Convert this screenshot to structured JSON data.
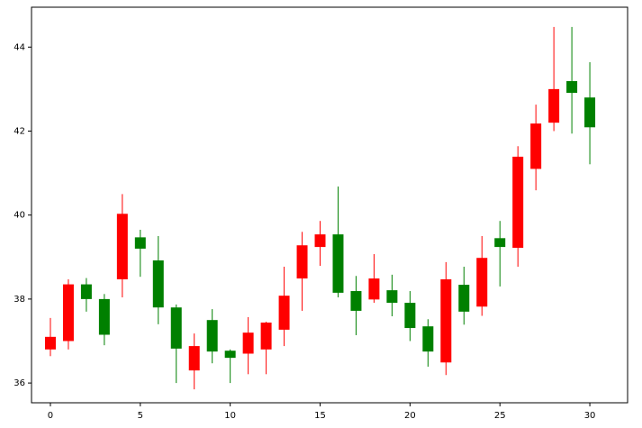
{
  "chart_data": {
    "type": "candlestick",
    "x": [
      0,
      1,
      2,
      3,
      4,
      5,
      6,
      7,
      8,
      9,
      10,
      11,
      12,
      13,
      14,
      15,
      16,
      17,
      18,
      19,
      20,
      21,
      22,
      23,
      24,
      25,
      26,
      27,
      28,
      29,
      30
    ],
    "open": [
      36.8,
      37.0,
      38.35,
      38.0,
      38.47,
      39.47,
      38.92,
      37.8,
      36.3,
      37.5,
      36.77,
      36.7,
      36.8,
      37.27,
      38.49,
      39.24,
      39.54,
      38.19,
      37.99,
      38.21,
      37.91,
      37.35,
      36.49,
      38.34,
      37.82,
      39.45,
      39.22,
      41.1,
      42.2,
      43.19,
      42.8
    ],
    "high": [
      37.55,
      38.47,
      38.5,
      38.12,
      40.5,
      39.65,
      39.5,
      37.87,
      37.18,
      37.76,
      36.8,
      37.57,
      37.46,
      38.77,
      39.6,
      39.86,
      40.68,
      38.55,
      39.07,
      38.58,
      38.19,
      37.52,
      38.88,
      38.77,
      39.5,
      39.86,
      41.64,
      42.63,
      44.48,
      44.48,
      43.64
    ],
    "low": [
      36.64,
      36.8,
      37.7,
      36.9,
      38.04,
      38.53,
      37.4,
      36.0,
      35.85,
      36.47,
      36.0,
      36.21,
      36.21,
      36.88,
      37.72,
      38.79,
      38.04,
      37.14,
      37.91,
      37.59,
      37.0,
      36.39,
      36.19,
      37.39,
      37.6,
      38.3,
      38.77,
      40.59,
      42.0,
      41.94,
      41.21
    ],
    "close": [
      37.1,
      38.35,
      38.0,
      37.15,
      40.03,
      39.2,
      37.8,
      36.82,
      36.88,
      36.75,
      36.6,
      37.2,
      37.44,
      38.08,
      39.28,
      39.54,
      38.15,
      37.72,
      38.49,
      37.91,
      37.31,
      36.75,
      38.47,
      37.7,
      38.98,
      39.24,
      41.39,
      42.18,
      43.0,
      42.91,
      42.09
    ],
    "up_color": "#ff0000",
    "down_color": "#008000",
    "xlim": [
      -1.05,
      32.1
    ],
    "ylim": [
      35.53,
      44.95
    ],
    "xticks": [
      0,
      5,
      10,
      15,
      20,
      25,
      30
    ],
    "yticks": [
      36,
      38,
      40,
      42,
      44
    ]
  }
}
